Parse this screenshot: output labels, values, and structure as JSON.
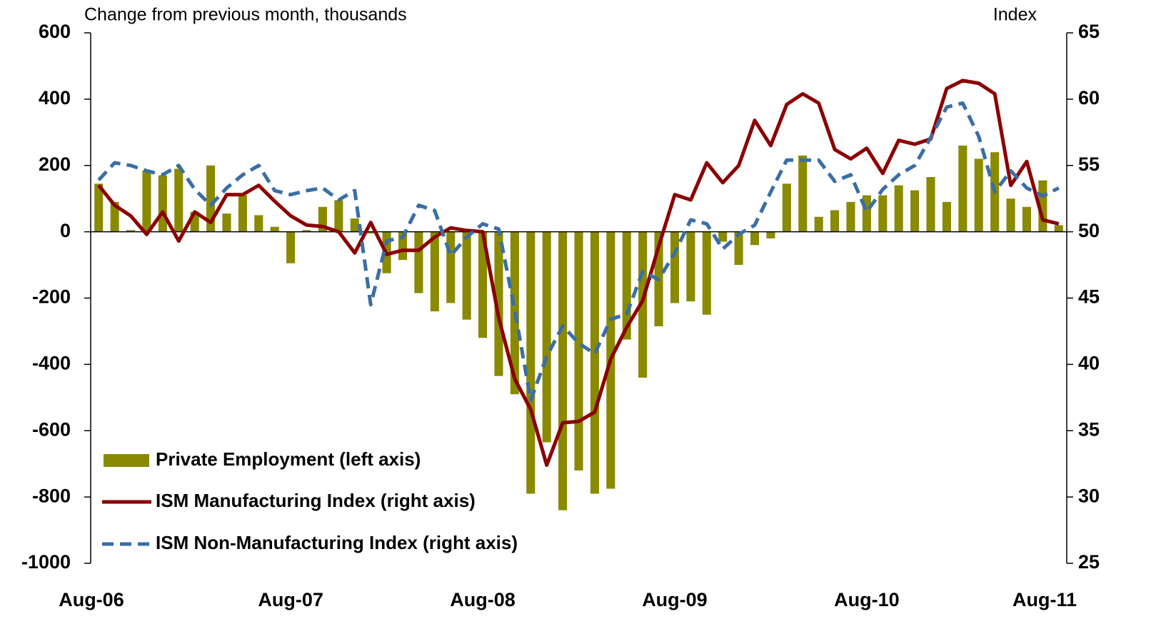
{
  "chart_data": {
    "type": "bar",
    "y_label": "Change from previous month, thousands",
    "y2_label": "Index",
    "categories": [
      "Aug-06",
      null,
      null,
      null,
      null,
      null,
      null,
      null,
      null,
      null,
      null,
      null,
      "Aug-07",
      null,
      null,
      null,
      null,
      null,
      null,
      null,
      null,
      null,
      null,
      null,
      "Aug-08",
      null,
      null,
      null,
      null,
      null,
      null,
      null,
      null,
      null,
      null,
      null,
      "Aug-09",
      null,
      null,
      null,
      null,
      null,
      null,
      null,
      null,
      null,
      null,
      null,
      "Aug-10",
      null,
      null,
      null,
      null,
      null,
      null,
      null,
      null,
      null,
      null,
      null,
      "Aug-11"
    ],
    "series": [
      {
        "name": "Private Employment (left axis)",
        "type": "bar",
        "color": "#8a8a00",
        "values": [
          145,
          90,
          5,
          185,
          170,
          190,
          60,
          200,
          55,
          110,
          50,
          15,
          -95,
          5,
          75,
          95,
          40,
          -5,
          -125,
          -85,
          -185,
          -240,
          -215,
          -265,
          -320,
          -435,
          -490,
          -790,
          -635,
          -840,
          -720,
          -790,
          -775,
          -325,
          -440,
          -285,
          -215,
          -210,
          -250,
          -30,
          -100,
          -40,
          -20,
          145,
          230,
          45,
          65,
          90,
          110,
          110,
          140,
          125,
          165,
          90,
          260,
          220,
          240,
          100,
          75,
          155,
          20
        ]
      },
      {
        "name": "ISM Manufacturing Index (right axis)",
        "type": "line",
        "axis": "y2",
        "color": "#8b0000",
        "dashed": false,
        "values": [
          53.5,
          52.0,
          51.2,
          49.8,
          51.5,
          49.3,
          51.5,
          50.7,
          52.8,
          52.8,
          53.5,
          52.3,
          51.2,
          50.5,
          50.4,
          50.0,
          48.4,
          50.7,
          48.3,
          48.6,
          48.6,
          49.6,
          50.3,
          50.1,
          50.0,
          43.5,
          38.9,
          36.6,
          32.4,
          35.6,
          35.7,
          36.4,
          40.4,
          42.8,
          44.8,
          48.9,
          52.8,
          52.4,
          55.2,
          53.7,
          55.0,
          58.4,
          56.5,
          59.6,
          60.4,
          59.7,
          56.2,
          55.5,
          56.3,
          54.4,
          56.9,
          56.6,
          57.0,
          60.8,
          61.4,
          61.2,
          60.4,
          53.5,
          55.3,
          50.9,
          50.6
        ]
      },
      {
        "name": "ISM Non-Manufacturing Index (right axis)",
        "type": "line",
        "axis": "y2",
        "color": "#3a6ea5",
        "dashed": true,
        "values": [
          53.9,
          55.2,
          55.0,
          54.6,
          54.3,
          55.0,
          53.2,
          52.0,
          53.3,
          54.3,
          55.0,
          53.1,
          52.8,
          53.1,
          53.3,
          52.4,
          53.1,
          44.5,
          49.3,
          49.6,
          52.0,
          51.6,
          48.2,
          49.6,
          50.6,
          50.2,
          44.1,
          37.3,
          40.6,
          42.9,
          41.6,
          40.8,
          43.4,
          43.8,
          47.0,
          46.4,
          48.4,
          50.9,
          50.6,
          48.7,
          49.8,
          50.5,
          53.0,
          55.4,
          55.4,
          55.4,
          53.8,
          54.3,
          51.5,
          53.2,
          54.3,
          55.0,
          57.1,
          59.4,
          59.7,
          57.2,
          53.0,
          54.6,
          53.3,
          52.7,
          53.3
        ]
      }
    ],
    "ylim": [
      -1000,
      600
    ],
    "yticks": [
      -1000,
      -800,
      -600,
      -400,
      -200,
      0,
      200,
      400,
      600
    ],
    "y2lim": [
      25,
      65
    ],
    "y2ticks": [
      25,
      30,
      35,
      40,
      45,
      50,
      55,
      60,
      65
    ],
    "grid": false,
    "legend": "bottom-left"
  }
}
